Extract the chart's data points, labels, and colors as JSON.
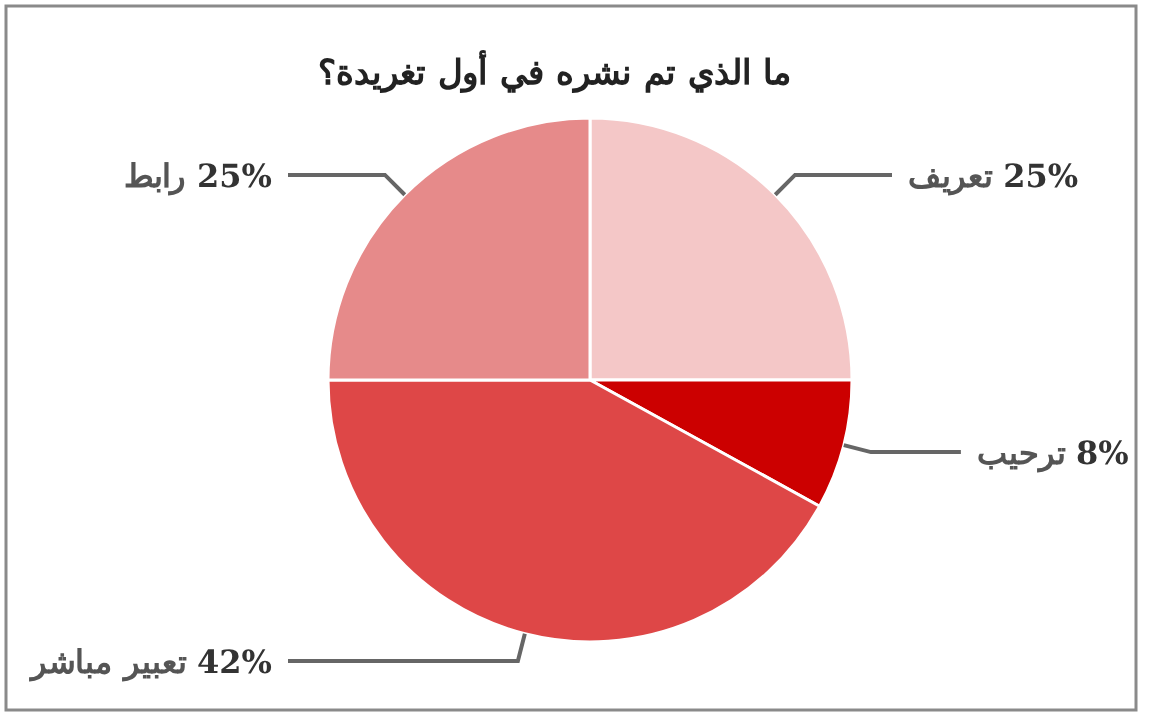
{
  "chart_data": {
    "type": "pie",
    "title": "ما الذي تم نشره في أول تغريدة؟",
    "categories": [
      "تعريف",
      "ترحيب",
      "تعبير مباشر",
      "رابط"
    ],
    "values": [
      25,
      8,
      42,
      25
    ],
    "colors": [
      "#f4c7c7",
      "#cc0000",
      "#de4747",
      "#e68a8a"
    ],
    "value_labels": [
      "25%",
      "8%",
      "42%",
      "25%"
    ]
  }
}
